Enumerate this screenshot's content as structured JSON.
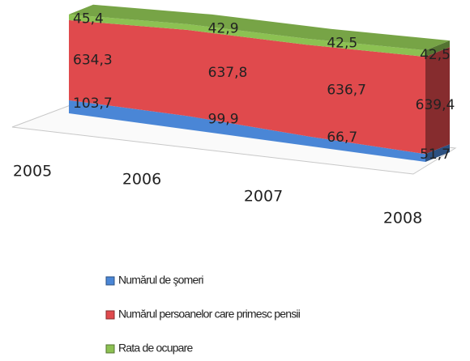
{
  "chart_data": {
    "type": "area3d",
    "categories": [
      "2005",
      "2006",
      "2007",
      "2008"
    ],
    "series": [
      {
        "name": "Numărul de şomeri",
        "color": "#4a86d6",
        "values": [
          103.7,
          99.9,
          66.7,
          51.7
        ],
        "value_labels": [
          "103,7",
          "99,9",
          "66,7",
          "51,7"
        ]
      },
      {
        "name": "Numărul persoanelor care primesc pensii",
        "color": "#e04a4d",
        "values": [
          634.3,
          637.8,
          636.7,
          639.4
        ],
        "value_labels": [
          "634,3",
          "637,8",
          "636,7",
          "639,4"
        ]
      },
      {
        "name": "Rata de ocupare",
        "color": "#8cc152",
        "values": [
          45.4,
          42.9,
          42.5,
          42.5
        ],
        "value_labels": [
          "45,4",
          "42,9",
          "42,5",
          "42,5"
        ]
      }
    ]
  }
}
